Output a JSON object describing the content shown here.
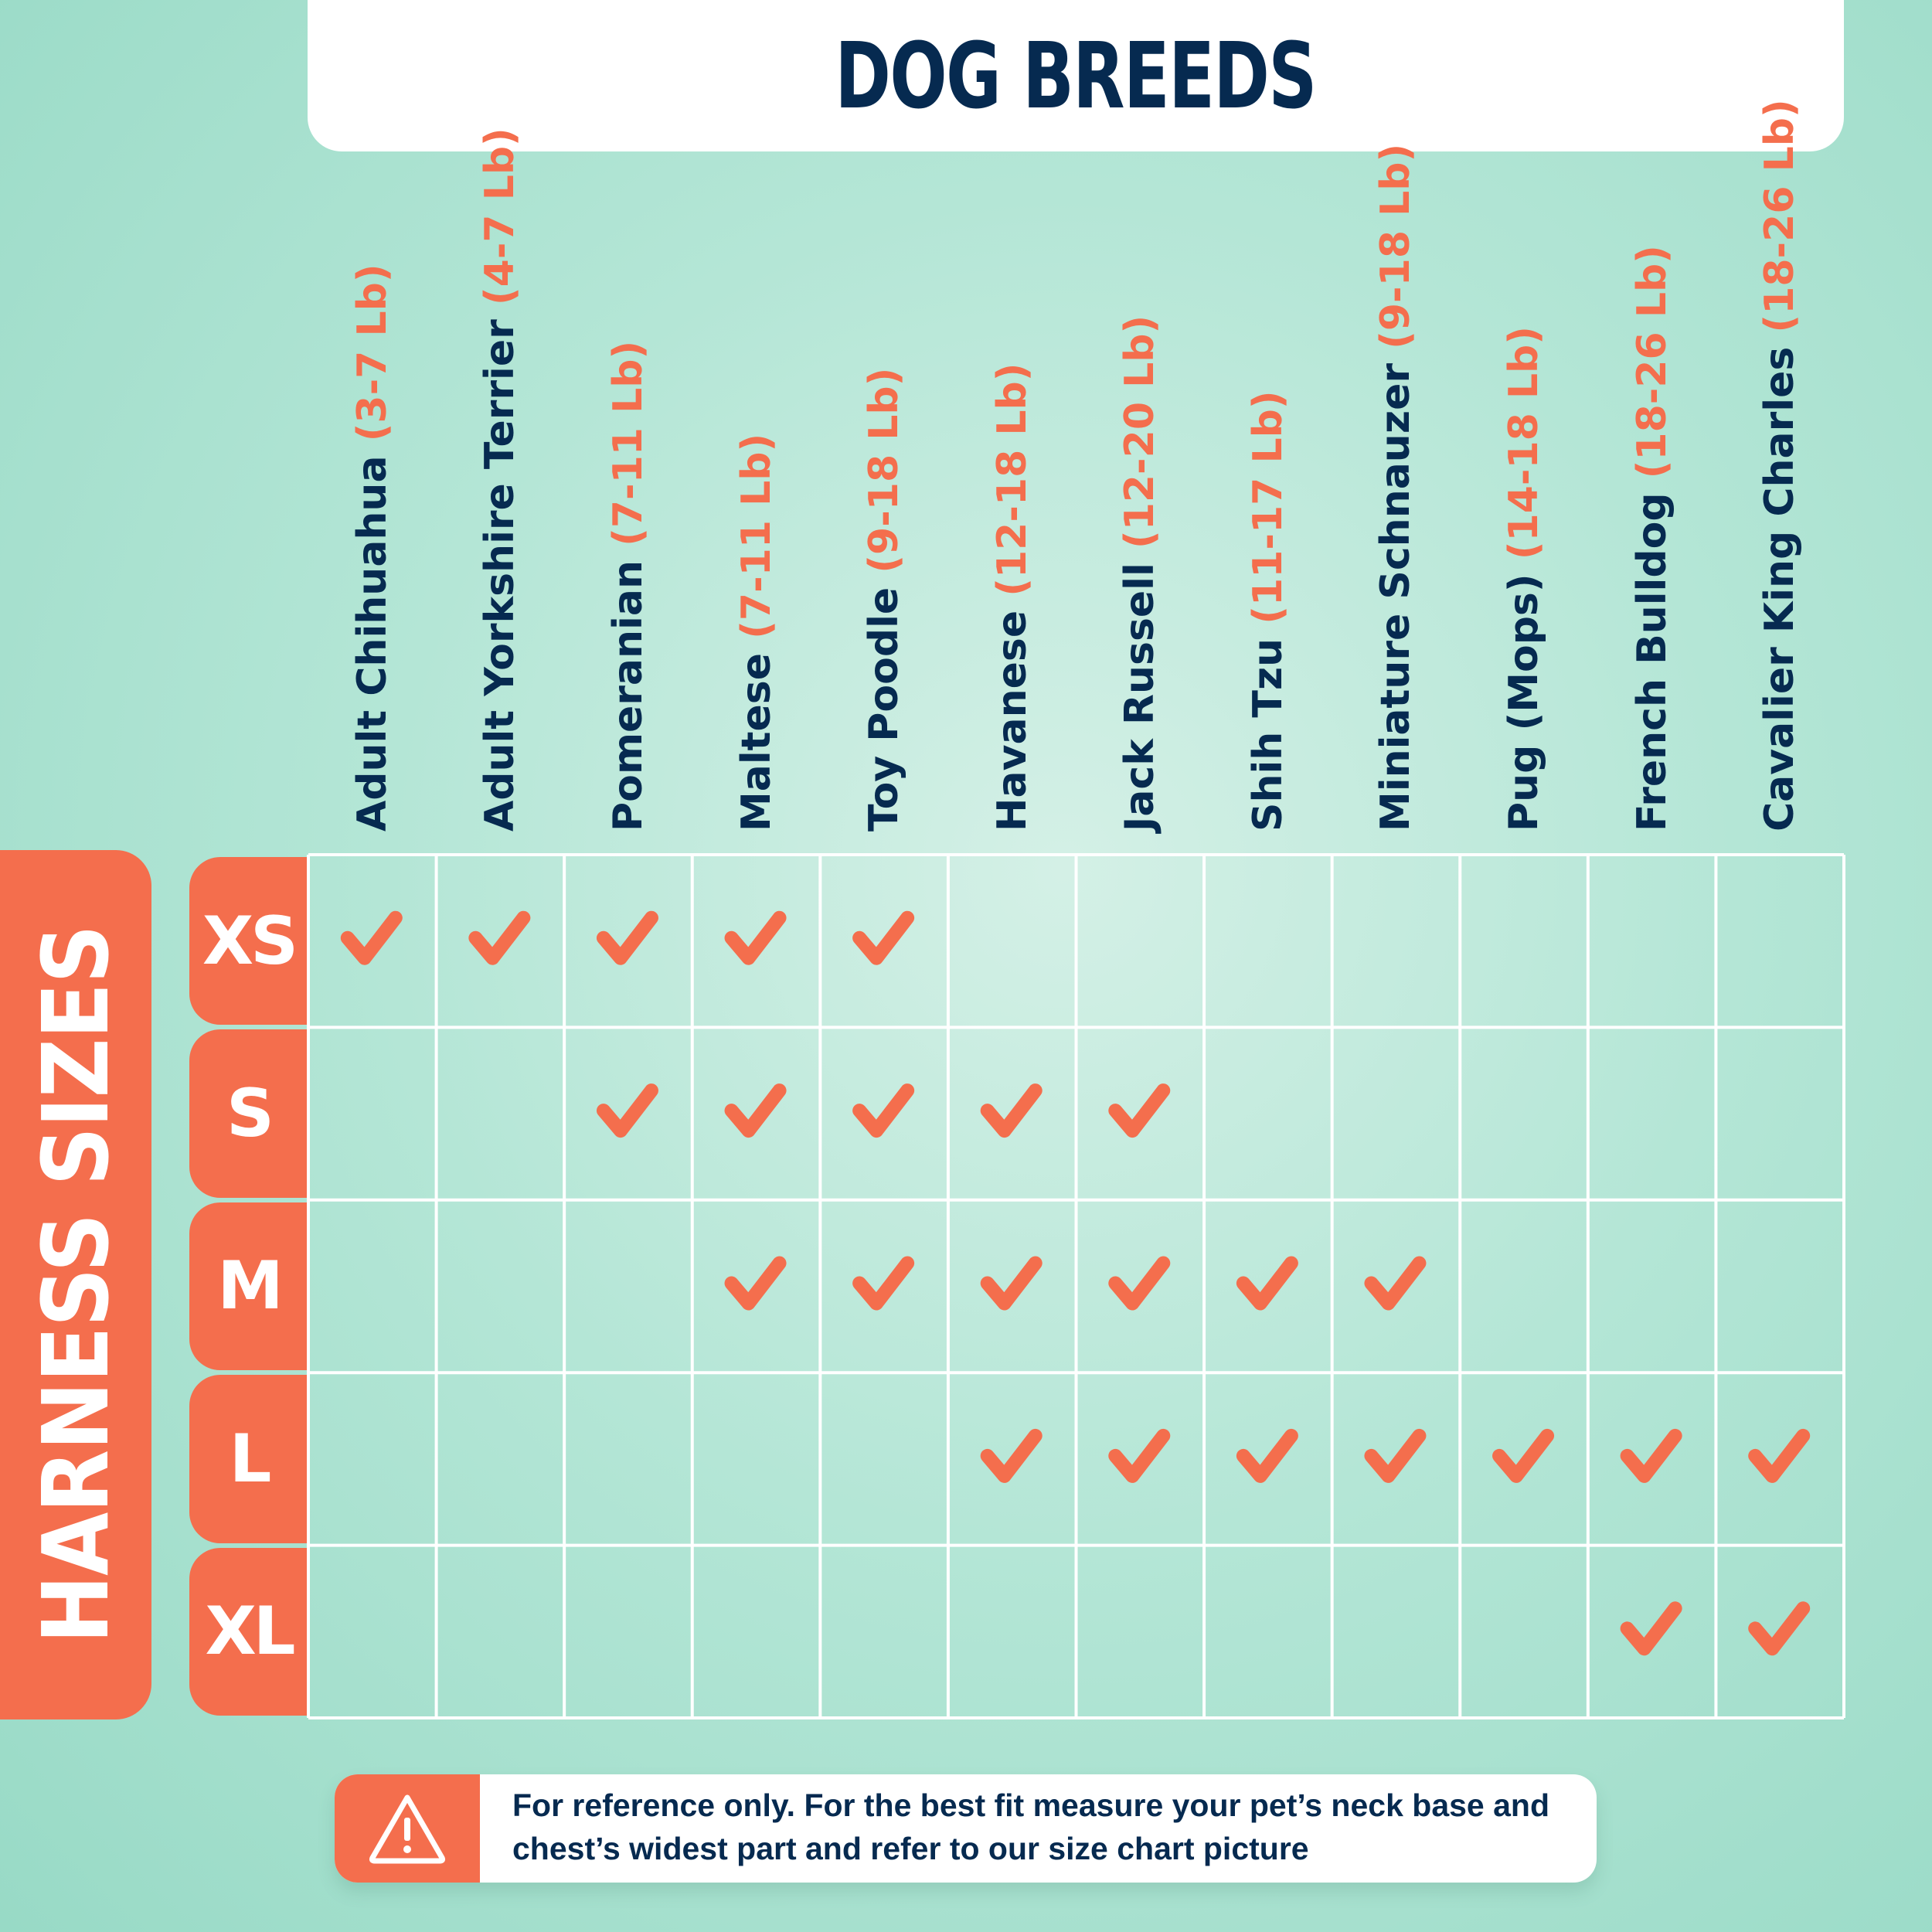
{
  "header": {
    "title": "DOG BREEDS"
  },
  "side_label": "HARNESS SIZES",
  "note": {
    "icon": "warning-icon",
    "text": "For reference only. For the best fit  measure your pet’s neck base and chest’s widest part and refer to our size chart picture"
  },
  "colors": {
    "accent": "#f46e4d",
    "navy": "#062a50",
    "white": "#ffffff",
    "background": "#b4e6d6"
  },
  "chart_data": {
    "type": "table",
    "title": "DOG BREEDS",
    "row_header": "HARNESS SIZES",
    "columns": [
      {
        "name": "Adult Chihuahua",
        "weight": "(3-7 Lb)"
      },
      {
        "name": "Adult Yorkshire Terrier",
        "weight": "(4-7 Lb)"
      },
      {
        "name": "Pomeranian",
        "weight": "(7-11 Lb)"
      },
      {
        "name": "Maltese",
        "weight": "(7-11 Lb)"
      },
      {
        "name": "Toy Poodle",
        "weight": "(9-18 Lb)"
      },
      {
        "name": "Havanese",
        "weight": "(12-18 Lb)"
      },
      {
        "name": "Jack Russell",
        "weight": "(12-20 Lb)"
      },
      {
        "name": "Shih Tzu",
        "weight": "(11-17 Lb)"
      },
      {
        "name": "Miniature Schnauzer",
        "weight": "(9-18 Lb)"
      },
      {
        "name": "Pug (Mops)",
        "weight": "(14-18 Lb)"
      },
      {
        "name": "French Bulldog",
        "weight": "(18-26 Lb)"
      },
      {
        "name": "Cavalier King Charles",
        "weight": "(18-26 Lb)"
      }
    ],
    "rows": [
      "XS",
      "S",
      "M",
      "L",
      "XL"
    ],
    "checks": [
      [
        1,
        1,
        1,
        1,
        1,
        0,
        0,
        0,
        0,
        0,
        0,
        0
      ],
      [
        0,
        0,
        1,
        1,
        1,
        1,
        1,
        0,
        0,
        0,
        0,
        0
      ],
      [
        0,
        0,
        0,
        1,
        1,
        1,
        1,
        1,
        1,
        0,
        0,
        0
      ],
      [
        0,
        0,
        0,
        0,
        0,
        1,
        1,
        1,
        1,
        1,
        1,
        1
      ],
      [
        0,
        0,
        0,
        0,
        0,
        0,
        0,
        0,
        0,
        0,
        1,
        1
      ]
    ]
  }
}
